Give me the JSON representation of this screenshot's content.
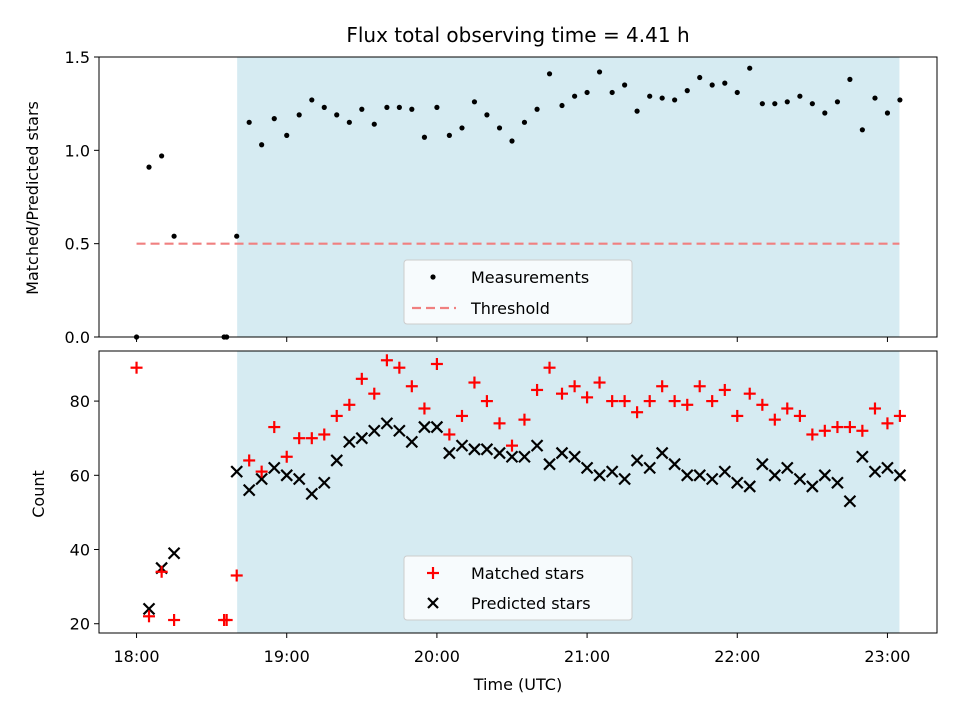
{
  "chart_data": {
    "title": "Flux total observing time = 4.41 h",
    "xlabel": "Time (UTC)",
    "x_ticks": [
      "18:00",
      "19:00",
      "20:00",
      "21:00",
      "22:00",
      "23:00"
    ],
    "x_tick_hours": [
      18,
      19,
      20,
      21,
      22,
      23
    ],
    "x_range_hours": [
      17.75,
      23.33
    ],
    "shaded_span_hours": [
      18.67,
      23.08
    ],
    "colors": {
      "shade": "#add8e6",
      "shade_alpha": 0.5,
      "measurements": "#000000",
      "threshold": "#f08080",
      "matched": "#ff0000",
      "predicted": "#000000"
    },
    "panels": [
      {
        "type": "scatter",
        "ylabel": "Matched/Predicted stars",
        "ylim": [
          0,
          1.5
        ],
        "yticks": [
          0.0,
          0.5,
          1.0,
          1.5
        ],
        "ytick_labels": [
          "0.0",
          "0.5",
          "1.0",
          "1.5"
        ],
        "legend": {
          "location": "lower center",
          "entries": [
            "Measurements",
            "Threshold"
          ]
        },
        "threshold": {
          "name": "Threshold",
          "y": 0.5,
          "x_from": 18.0,
          "x_to": 23.08
        },
        "series": [
          {
            "name": "Measurements",
            "marker": "dot",
            "points": [
              [
                18.0,
                0.0
              ],
              [
                18.083,
                0.91
              ],
              [
                18.167,
                0.97
              ],
              [
                18.25,
                0.54
              ],
              [
                18.583,
                0.0
              ],
              [
                18.6,
                0.0
              ],
              [
                18.667,
                0.54
              ],
              [
                18.75,
                1.15
              ],
              [
                18.833,
                1.03
              ],
              [
                18.917,
                1.17
              ],
              [
                19.0,
                1.08
              ],
              [
                19.083,
                1.19
              ],
              [
                19.167,
                1.27
              ],
              [
                19.25,
                1.23
              ],
              [
                19.333,
                1.19
              ],
              [
                19.417,
                1.15
              ],
              [
                19.5,
                1.22
              ],
              [
                19.583,
                1.14
              ],
              [
                19.667,
                1.23
              ],
              [
                19.75,
                1.23
              ],
              [
                19.833,
                1.22
              ],
              [
                19.917,
                1.07
              ],
              [
                20.0,
                1.23
              ],
              [
                20.083,
                1.08
              ],
              [
                20.167,
                1.12
              ],
              [
                20.25,
                1.26
              ],
              [
                20.333,
                1.19
              ],
              [
                20.417,
                1.12
              ],
              [
                20.5,
                1.05
              ],
              [
                20.583,
                1.15
              ],
              [
                20.667,
                1.22
              ],
              [
                20.75,
                1.41
              ],
              [
                20.833,
                1.24
              ],
              [
                20.917,
                1.29
              ],
              [
                21.0,
                1.31
              ],
              [
                21.083,
                1.42
              ],
              [
                21.167,
                1.31
              ],
              [
                21.25,
                1.35
              ],
              [
                21.333,
                1.21
              ],
              [
                21.417,
                1.29
              ],
              [
                21.5,
                1.28
              ],
              [
                21.583,
                1.27
              ],
              [
                21.667,
                1.32
              ],
              [
                21.75,
                1.39
              ],
              [
                21.833,
                1.35
              ],
              [
                21.917,
                1.36
              ],
              [
                22.0,
                1.31
              ],
              [
                22.083,
                1.44
              ],
              [
                22.167,
                1.25
              ],
              [
                22.25,
                1.25
              ],
              [
                22.333,
                1.26
              ],
              [
                22.417,
                1.29
              ],
              [
                22.5,
                1.25
              ],
              [
                22.583,
                1.2
              ],
              [
                22.667,
                1.26
              ],
              [
                22.75,
                1.38
              ],
              [
                22.833,
                1.11
              ],
              [
                22.917,
                1.28
              ],
              [
                23.0,
                1.2
              ],
              [
                23.083,
                1.27
              ]
            ]
          }
        ]
      },
      {
        "type": "scatter",
        "ylabel": "Count",
        "ylim": [
          17.5,
          93.5
        ],
        "yticks": [
          20,
          40,
          60,
          80
        ],
        "ytick_labels": [
          "20",
          "40",
          "60",
          "80"
        ],
        "legend": {
          "location": "lower center",
          "entries": [
            "Matched stars",
            "Predicted stars"
          ]
        },
        "series": [
          {
            "name": "Matched stars",
            "marker": "plus",
            "points": [
              [
                18.0,
                89
              ],
              [
                18.083,
                22
              ],
              [
                18.167,
                34
              ],
              [
                18.25,
                21
              ],
              [
                18.583,
                21
              ],
              [
                18.6,
                21
              ],
              [
                18.667,
                33
              ],
              [
                18.75,
                64
              ],
              [
                18.833,
                61
              ],
              [
                18.917,
                73
              ],
              [
                19.0,
                65
              ],
              [
                19.083,
                70
              ],
              [
                19.167,
                70
              ],
              [
                19.25,
                71
              ],
              [
                19.333,
                76
              ],
              [
                19.417,
                79
              ],
              [
                19.5,
                86
              ],
              [
                19.583,
                82
              ],
              [
                19.667,
                91
              ],
              [
                19.75,
                89
              ],
              [
                19.833,
                84
              ],
              [
                19.917,
                78
              ],
              [
                20.0,
                90
              ],
              [
                20.083,
                71
              ],
              [
                20.167,
                76
              ],
              [
                20.25,
                85
              ],
              [
                20.333,
                80
              ],
              [
                20.417,
                74
              ],
              [
                20.5,
                68
              ],
              [
                20.583,
                75
              ],
              [
                20.667,
                83
              ],
              [
                20.75,
                89
              ],
              [
                20.833,
                82
              ],
              [
                20.917,
                84
              ],
              [
                21.0,
                81
              ],
              [
                21.083,
                85
              ],
              [
                21.167,
                80
              ],
              [
                21.25,
                80
              ],
              [
                21.333,
                77
              ],
              [
                21.417,
                80
              ],
              [
                21.5,
                84
              ],
              [
                21.583,
                80
              ],
              [
                21.667,
                79
              ],
              [
                21.75,
                84
              ],
              [
                21.833,
                80
              ],
              [
                21.917,
                83
              ],
              [
                22.0,
                76
              ],
              [
                22.083,
                82
              ],
              [
                22.167,
                79
              ],
              [
                22.25,
                75
              ],
              [
                22.333,
                78
              ],
              [
                22.417,
                76
              ],
              [
                22.5,
                71
              ],
              [
                22.583,
                72
              ],
              [
                22.667,
                73
              ],
              [
                22.75,
                73
              ],
              [
                22.833,
                72
              ],
              [
                22.917,
                78
              ],
              [
                23.0,
                74
              ],
              [
                23.083,
                76
              ]
            ]
          },
          {
            "name": "Predicted stars",
            "marker": "x",
            "points": [
              [
                18.083,
                24
              ],
              [
                18.167,
                35
              ],
              [
                18.25,
                39
              ],
              [
                18.667,
                61
              ],
              [
                18.75,
                56
              ],
              [
                18.833,
                59
              ],
              [
                18.917,
                62
              ],
              [
                19.0,
                60
              ],
              [
                19.083,
                59
              ],
              [
                19.167,
                55
              ],
              [
                19.25,
                58
              ],
              [
                19.333,
                64
              ],
              [
                19.417,
                69
              ],
              [
                19.5,
                70
              ],
              [
                19.583,
                72
              ],
              [
                19.667,
                74
              ],
              [
                19.75,
                72
              ],
              [
                19.833,
                69
              ],
              [
                19.917,
                73
              ],
              [
                20.0,
                73
              ],
              [
                20.083,
                66
              ],
              [
                20.167,
                68
              ],
              [
                20.25,
                67
              ],
              [
                20.333,
                67
              ],
              [
                20.417,
                66
              ],
              [
                20.5,
                65
              ],
              [
                20.583,
                65
              ],
              [
                20.667,
                68
              ],
              [
                20.75,
                63
              ],
              [
                20.833,
                66
              ],
              [
                20.917,
                65
              ],
              [
                21.0,
                62
              ],
              [
                21.083,
                60
              ],
              [
                21.167,
                61
              ],
              [
                21.25,
                59
              ],
              [
                21.333,
                64
              ],
              [
                21.417,
                62
              ],
              [
                21.5,
                66
              ],
              [
                21.583,
                63
              ],
              [
                21.667,
                60
              ],
              [
                21.75,
                60
              ],
              [
                21.833,
                59
              ],
              [
                21.917,
                61
              ],
              [
                22.0,
                58
              ],
              [
                22.083,
                57
              ],
              [
                22.167,
                63
              ],
              [
                22.25,
                60
              ],
              [
                22.333,
                62
              ],
              [
                22.417,
                59
              ],
              [
                22.5,
                57
              ],
              [
                22.583,
                60
              ],
              [
                22.667,
                58
              ],
              [
                22.75,
                53
              ],
              [
                22.833,
                65
              ],
              [
                22.917,
                61
              ],
              [
                23.0,
                62
              ],
              [
                23.083,
                60
              ]
            ]
          }
        ]
      }
    ]
  }
}
